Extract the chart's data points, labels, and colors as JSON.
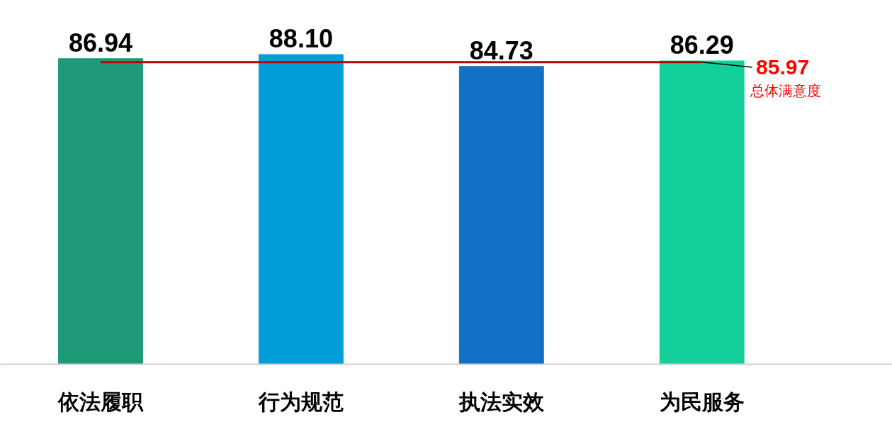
{
  "chart_data": {
    "type": "bar",
    "categories": [
      "依法履职",
      "行为规范",
      "执法实效",
      "为民服务"
    ],
    "values": [
      86.94,
      88.1,
      84.73,
      86.29
    ],
    "value_labels": [
      "86.94",
      "88.10",
      "84.73",
      "86.29"
    ],
    "colors": [
      "#1e9a78",
      "#039dd9",
      "#1170c6",
      "#12cf9a"
    ],
    "ref_lines": [
      {
        "axis": "y",
        "value": 85.97,
        "label": "总体满意度",
        "color": "#c00000"
      }
    ],
    "annotations": [
      "85.97"
    ],
    "grid": false
  }
}
